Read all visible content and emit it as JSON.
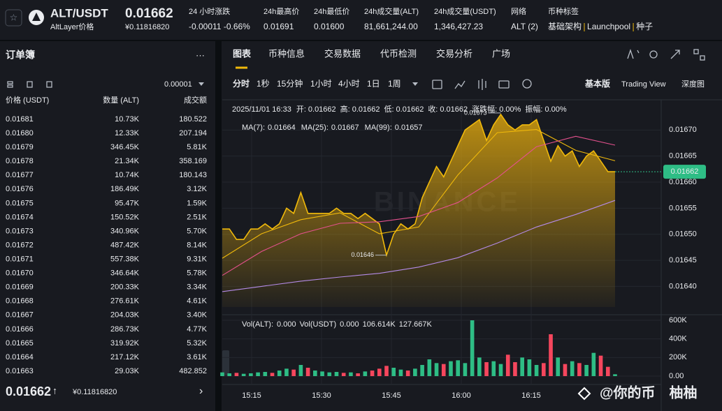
{
  "header": {
    "pair": "ALT/USDT",
    "name": "AltLayer价格",
    "price": "0.01662",
    "price_cny": "¥0.11816820",
    "stats": [
      {
        "label": "24 小时涨跌",
        "value": "-0.00011 -0.66%"
      },
      {
        "label": "24h最高价",
        "value": "0.01691"
      },
      {
        "label": "24h最低价",
        "value": "0.01600"
      },
      {
        "label": "24h成交量(ALT)",
        "value": "81,661,244.00"
      },
      {
        "label": "24h成交量(USDT)",
        "value": "1,346,427.23"
      },
      {
        "label": "网络",
        "value": "ALT (2)"
      }
    ],
    "tags_label": "币种标签",
    "tags": [
      "基础架构",
      "Launchpool",
      "种子"
    ]
  },
  "orderbook": {
    "title": "订单簿",
    "more": "···",
    "precision": "0.00001",
    "columns": [
      "价格 (USDT)",
      "数量 (ALT)",
      "成交额"
    ],
    "rows": [
      [
        "0.01681",
        "10.73K",
        "180.522"
      ],
      [
        "0.01680",
        "12.33K",
        "207.194"
      ],
      [
        "0.01679",
        "346.45K",
        "5.81K"
      ],
      [
        "0.01678",
        "21.34K",
        "358.169"
      ],
      [
        "0.01677",
        "10.74K",
        "180.143"
      ],
      [
        "0.01676",
        "186.49K",
        "3.12K"
      ],
      [
        "0.01675",
        "95.47K",
        "1.59K"
      ],
      [
        "0.01674",
        "150.52K",
        "2.51K"
      ],
      [
        "0.01673",
        "340.96K",
        "5.70K"
      ],
      [
        "0.01672",
        "487.42K",
        "8.14K"
      ],
      [
        "0.01671",
        "557.38K",
        "9.31K"
      ],
      [
        "0.01670",
        "346.64K",
        "5.78K"
      ],
      [
        "0.01669",
        "200.33K",
        "3.34K"
      ],
      [
        "0.01668",
        "276.61K",
        "4.61K"
      ],
      [
        "0.01667",
        "204.03K",
        "3.40K"
      ],
      [
        "0.01666",
        "286.73K",
        "4.77K"
      ],
      [
        "0.01665",
        "319.92K",
        "5.32K"
      ],
      [
        "0.01664",
        "217.12K",
        "3.61K"
      ],
      [
        "0.01663",
        "29.03K",
        "482.852"
      ]
    ],
    "last_price": "0.01662",
    "arrow": "↑",
    "last_price_cny": "¥0.11816820",
    "chevron": "›"
  },
  "tabs": [
    "图表",
    "币种信息",
    "交易数据",
    "代币检测",
    "交易分析",
    "广场"
  ],
  "intervals": [
    "分时",
    "1秒",
    "15分钟",
    "1小时",
    "4小时",
    "1日",
    "1周"
  ],
  "views": [
    "基本版",
    "Trading View",
    "深度图"
  ],
  "chart_data": {
    "type": "line",
    "info": [
      {
        "label": "2025/11/01 16:33",
        "value": ""
      },
      {
        "label": "开:",
        "value": "0.01662"
      },
      {
        "label": "高:",
        "value": "0.01662"
      },
      {
        "label": "低:",
        "value": "0.01662"
      },
      {
        "label": "收:",
        "value": "0.01662"
      },
      {
        "label": "涨跌幅:",
        "value": "0.00%"
      },
      {
        "label": "振幅:",
        "value": "0.00%"
      }
    ],
    "ma_legend": [
      {
        "label": "MA(7):",
        "value": "0.01664",
        "color": "#f0b90b"
      },
      {
        "label": "MA(25):",
        "value": "0.01667",
        "color": "#e5518e"
      },
      {
        "label": "MA(99):",
        "value": "0.01657",
        "color": "#b48be8"
      }
    ],
    "watermark": "BINANCE",
    "price": {
      "color": "#f0b90b",
      "values": [
        0.01651,
        0.01651,
        0.01649,
        0.01649,
        0.01651,
        0.01651,
        0.01652,
        0.01651,
        0.01652,
        0.01655,
        0.01654,
        0.01658,
        0.01654,
        0.01654,
        0.01654,
        0.01654,
        0.01655,
        0.01654,
        0.01654,
        0.01653,
        0.01654,
        0.01653,
        0.01652,
        0.01646,
        0.0165,
        0.01652,
        0.01651,
        0.01652,
        0.01657,
        0.0166,
        0.01663,
        0.01661,
        0.01664,
        0.01667,
        0.0167,
        0.01671,
        0.01672,
        0.01668,
        0.01671,
        0.01673,
        0.01671,
        0.0167,
        0.01671,
        0.01671,
        0.01672,
        0.01668,
        0.01664,
        0.01667,
        0.01665,
        0.01666,
        0.01663,
        0.01665,
        0.01666,
        0.01664,
        0.01662,
        0.01662
      ]
    },
    "ma": [
      {
        "name": "MA(7)",
        "color": "#f0b90b",
        "values": [
          0.016454,
          0.016501,
          0.016528,
          0.016541,
          0.016501,
          0.016514,
          0.016614,
          0.016695,
          0.016701,
          0.016661,
          0.016641
        ]
      },
      {
        "name": "MA(25)",
        "color": "#e5518e",
        "values": [
          0.016421,
          0.016467,
          0.016501,
          0.016521,
          0.016524,
          0.016534,
          0.016561,
          0.016608,
          0.016668,
          0.016688,
          0.016671
        ]
      },
      {
        "name": "MA(99)",
        "color": "#b48be8",
        "values": [
          0.01639,
          0.0164,
          0.01641,
          0.016418,
          0.016425,
          0.016437,
          0.016455,
          0.016483,
          0.016514,
          0.016538,
          0.016565
        ]
      }
    ],
    "ylim": [
      0.016347,
      0.016758
    ],
    "yticks": [
      {
        "value": 0.0167,
        "label": "0.01670"
      },
      0.01665,
      {
        "value": 0.0166,
        "label": "0.01660"
      },
      0.01655,
      {
        "value": 0.0165,
        "label": "0.01650"
      },
      0.01645,
      {
        "value": 0.0164,
        "label": "0.01640"
      }
    ],
    "current_label": "0.01662",
    "high_label": "0.01673",
    "low_label": "0.01646",
    "vol_legend": [
      "Vol(ALT):",
      "0.000",
      "Vol(USDT)",
      "0.000",
      "106.614K",
      "127.667K"
    ],
    "volume": {
      "up_color": "#2ebd85",
      "down_color": "#f6465d",
      "values": [
        40000,
        30000,
        35000,
        25000,
        30000,
        40000,
        45000,
        35000,
        60000,
        80000,
        70000,
        120000,
        90000,
        60000,
        50000,
        40000,
        45000,
        35000,
        40000,
        30000,
        50000,
        60000,
        80000,
        110000,
        90000,
        70000,
        60000,
        80000,
        120000,
        180000,
        140000,
        130000,
        160000,
        170000,
        140000,
        600000,
        200000,
        150000,
        160000,
        130000,
        230000,
        150000,
        200000,
        180000,
        120000,
        140000,
        450000,
        200000,
        130000,
        160000,
        140000,
        120000,
        250000,
        220000,
        100000,
        20000
      ]
    },
    "vlim": [
      0,
      652500
    ],
    "vticks": [
      {
        "value": 600000,
        "label": "600K"
      },
      {
        "value": 400000,
        "label": "400K"
      },
      {
        "value": 200000,
        "label": "200K"
      },
      {
        "value": 0,
        "label": "0.00"
      }
    ],
    "xlabels": [
      "15:15",
      "15:30",
      "15:45",
      "16:00",
      "16:15"
    ],
    "grid": true
  },
  "overlay": "@你的币　柚柚"
}
